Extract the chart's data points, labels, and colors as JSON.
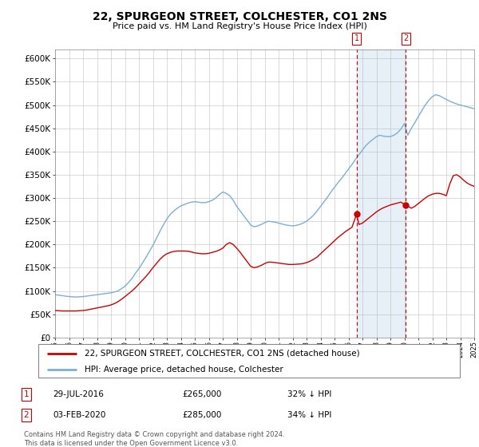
{
  "title": "22, SPURGEON STREET, COLCHESTER, CO1 2NS",
  "subtitle": "Price paid vs. HM Land Registry's House Price Index (HPI)",
  "ylim": [
    0,
    620000
  ],
  "yticks": [
    0,
    50000,
    100000,
    150000,
    200000,
    250000,
    300000,
    350000,
    400000,
    450000,
    500000,
    550000,
    600000
  ],
  "red_color": "#cc0000",
  "blue_color": "#7bafd4",
  "blue_fill": "#ddeeff",
  "dashed_red": "#cc0000",
  "sale1": {
    "label": "29-JUL-2016",
    "price": 265000,
    "pct": "32% ↓ HPI",
    "x": 2016.58
  },
  "sale2": {
    "label": "03-FEB-2020",
    "price": 285000,
    "pct": "34% ↓ HPI",
    "x": 2020.09
  },
  "legend_line1": "22, SPURGEON STREET, COLCHESTER, CO1 2NS (detached house)",
  "legend_line2": "HPI: Average price, detached house, Colchester",
  "footer": "Contains HM Land Registry data © Crown copyright and database right 2024.\nThis data is licensed under the Open Government Licence v3.0.",
  "xmin": 1995,
  "xmax": 2025,
  "blue_years": [
    1995.0,
    1995.25,
    1995.5,
    1995.75,
    1996.0,
    1996.25,
    1996.5,
    1996.75,
    1997.0,
    1997.25,
    1997.5,
    1997.75,
    1998.0,
    1998.25,
    1998.5,
    1998.75,
    1999.0,
    1999.25,
    1999.5,
    1999.75,
    2000.0,
    2000.25,
    2000.5,
    2000.75,
    2001.0,
    2001.25,
    2001.5,
    2001.75,
    2002.0,
    2002.25,
    2002.5,
    2002.75,
    2003.0,
    2003.25,
    2003.5,
    2003.75,
    2004.0,
    2004.25,
    2004.5,
    2004.75,
    2005.0,
    2005.25,
    2005.5,
    2005.75,
    2006.0,
    2006.25,
    2006.5,
    2006.75,
    2007.0,
    2007.25,
    2007.5,
    2007.75,
    2008.0,
    2008.25,
    2008.5,
    2008.75,
    2009.0,
    2009.25,
    2009.5,
    2009.75,
    2010.0,
    2010.25,
    2010.5,
    2010.75,
    2011.0,
    2011.25,
    2011.5,
    2011.75,
    2012.0,
    2012.25,
    2012.5,
    2012.75,
    2013.0,
    2013.25,
    2013.5,
    2013.75,
    2014.0,
    2014.25,
    2014.5,
    2014.75,
    2015.0,
    2015.25,
    2015.5,
    2015.75,
    2016.0,
    2016.25,
    2016.5,
    2016.75,
    2017.0,
    2017.25,
    2017.5,
    2017.75,
    2018.0,
    2018.25,
    2018.5,
    2018.75,
    2019.0,
    2019.25,
    2019.5,
    2019.75,
    2020.0,
    2020.25,
    2020.5,
    2020.75,
    2021.0,
    2021.25,
    2021.5,
    2021.75,
    2022.0,
    2022.25,
    2022.5,
    2022.75,
    2023.0,
    2023.25,
    2023.5,
    2023.75,
    2024.0,
    2024.25,
    2024.5,
    2024.75,
    2025.0
  ],
  "blue_vals": [
    92000,
    91000,
    90000,
    89000,
    88000,
    87500,
    87000,
    87500,
    88000,
    89000,
    90000,
    91000,
    92000,
    93000,
    94000,
    95000,
    96000,
    98000,
    100000,
    105000,
    110000,
    118000,
    127000,
    138000,
    148000,
    160000,
    172000,
    185000,
    198000,
    213000,
    228000,
    242000,
    255000,
    265000,
    272000,
    278000,
    283000,
    286000,
    289000,
    291000,
    292000,
    291000,
    290000,
    290000,
    292000,
    295000,
    300000,
    307000,
    313000,
    310000,
    305000,
    295000,
    282000,
    272000,
    262000,
    252000,
    242000,
    238000,
    240000,
    243000,
    247000,
    250000,
    249000,
    248000,
    246000,
    244000,
    242000,
    241000,
    240000,
    241000,
    243000,
    246000,
    250000,
    256000,
    263000,
    272000,
    282000,
    292000,
    302000,
    313000,
    323000,
    333000,
    342000,
    352000,
    362000,
    372000,
    383000,
    393000,
    403000,
    413000,
    420000,
    426000,
    432000,
    435000,
    433000,
    432000,
    432000,
    435000,
    440000,
    448000,
    460000,
    435000,
    450000,
    462000,
    475000,
    488000,
    500000,
    510000,
    518000,
    522000,
    520000,
    516000,
    512000,
    508000,
    505000,
    502000,
    500000,
    498000,
    496000,
    494000,
    492000
  ],
  "red_years": [
    1995.0,
    1995.25,
    1995.5,
    1995.75,
    1996.0,
    1996.25,
    1996.5,
    1996.75,
    1997.0,
    1997.25,
    1997.5,
    1997.75,
    1998.0,
    1998.25,
    1998.5,
    1998.75,
    1999.0,
    1999.25,
    1999.5,
    1999.75,
    2000.0,
    2000.25,
    2000.5,
    2000.75,
    2001.0,
    2001.25,
    2001.5,
    2001.75,
    2002.0,
    2002.25,
    2002.5,
    2002.75,
    2003.0,
    2003.25,
    2003.5,
    2003.75,
    2004.0,
    2004.25,
    2004.5,
    2004.75,
    2005.0,
    2005.25,
    2005.5,
    2005.75,
    2006.0,
    2006.25,
    2006.5,
    2006.75,
    2007.0,
    2007.25,
    2007.5,
    2007.75,
    2008.0,
    2008.25,
    2008.5,
    2008.75,
    2009.0,
    2009.25,
    2009.5,
    2009.75,
    2010.0,
    2010.25,
    2010.5,
    2010.75,
    2011.0,
    2011.25,
    2011.5,
    2011.75,
    2012.0,
    2012.25,
    2012.5,
    2012.75,
    2013.0,
    2013.25,
    2013.5,
    2013.75,
    2014.0,
    2014.25,
    2014.5,
    2014.75,
    2015.0,
    2015.25,
    2015.5,
    2015.75,
    2016.0,
    2016.25,
    2016.58,
    2016.75,
    2017.0,
    2017.25,
    2017.5,
    2017.75,
    2018.0,
    2018.25,
    2018.5,
    2018.75,
    2019.0,
    2019.25,
    2019.5,
    2019.75,
    2020.09,
    2020.5,
    2020.75,
    2021.0,
    2021.25,
    2021.5,
    2021.75,
    2022.0,
    2022.25,
    2022.5,
    2022.75,
    2023.0,
    2023.25,
    2023.5,
    2023.75,
    2024.0,
    2024.25,
    2024.5,
    2024.75,
    2025.0
  ],
  "red_vals": [
    58000,
    57500,
    57000,
    57000,
    57000,
    57000,
    57000,
    57500,
    58000,
    59000,
    60500,
    62000,
    63500,
    65000,
    66500,
    68000,
    70000,
    73000,
    77000,
    82000,
    88000,
    94000,
    100000,
    107000,
    115000,
    123000,
    131000,
    140000,
    150000,
    159000,
    168000,
    175000,
    180000,
    183000,
    185000,
    186000,
    186000,
    186000,
    185500,
    184000,
    182000,
    181000,
    180000,
    180000,
    181000,
    183000,
    185000,
    188000,
    192000,
    200000,
    204000,
    200000,
    192000,
    183000,
    173000,
    163000,
    153000,
    150000,
    152000,
    155000,
    159000,
    162000,
    162000,
    161000,
    160000,
    159000,
    158000,
    157000,
    157000,
    157500,
    158000,
    159000,
    161000,
    164000,
    168000,
    173000,
    180000,
    187000,
    194000,
    201000,
    208000,
    215000,
    221000,
    227000,
    232000,
    237000,
    265000,
    243000,
    246000,
    252000,
    258000,
    264000,
    270000,
    275000,
    279000,
    282000,
    285000,
    287000,
    289000,
    291000,
    285000,
    278000,
    282000,
    288000,
    294000,
    300000,
    305000,
    308000,
    310000,
    310000,
    308000,
    305000,
    330000,
    348000,
    350000,
    345000,
    338000,
    332000,
    328000,
    325000
  ]
}
